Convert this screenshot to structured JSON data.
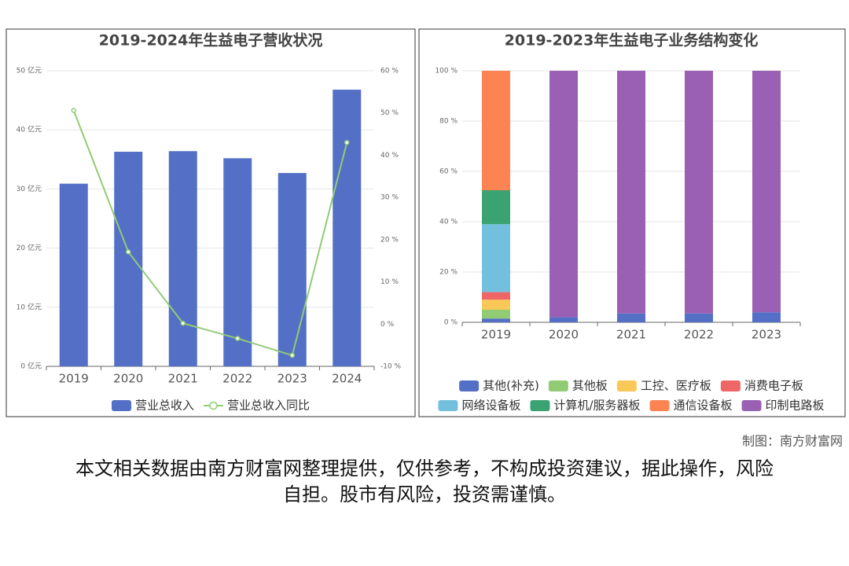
{
  "chart_data": [
    {
      "type": "bar_line",
      "title": "2019-2024年生益电子营收状况",
      "categories": [
        "2019",
        "2020",
        "2021",
        "2022",
        "2023",
        "2024"
      ],
      "series": [
        {
          "name": "营业总收入",
          "type": "bar",
          "color": "#5470c6",
          "values": [
            30.9,
            36.3,
            36.4,
            35.2,
            32.7,
            46.8
          ]
        },
        {
          "name": "营业总收入同比",
          "type": "line",
          "axis": "y2",
          "color": "#91cc75",
          "values": [
            50.6,
            17.1,
            0.2,
            -3.4,
            -7.4,
            43.0
          ]
        }
      ],
      "ylim": [
        0,
        50
      ],
      "yticks": [
        {
          "value": 0,
          "label": "0 亿元"
        },
        {
          "value": 10,
          "label": "10 亿元"
        },
        {
          "value": 20,
          "label": "20 亿元"
        },
        {
          "value": 30,
          "label": "30 亿元"
        },
        {
          "value": 40,
          "label": "40 亿元"
        },
        {
          "value": 50,
          "label": "50 亿元"
        }
      ],
      "y2lim": [
        -10,
        60
      ],
      "y2ticks": [
        {
          "value": -10,
          "label": "-10 %"
        },
        {
          "value": 0,
          "label": "0 %"
        },
        {
          "value": 10,
          "label": "10 %"
        },
        {
          "value": 20,
          "label": "20 %"
        },
        {
          "value": 30,
          "label": "30 %"
        },
        {
          "value": 40,
          "label": "40 %"
        },
        {
          "value": 50,
          "label": "50 %"
        },
        {
          "value": 60,
          "label": "60 %"
        }
      ],
      "grid": true,
      "legend": "bottom"
    },
    {
      "type": "stacked_bar",
      "title": "2019-2023年生益电子业务结构变化",
      "categories": [
        "2019",
        "2020",
        "2021",
        "2022",
        "2023"
      ],
      "series": [
        {
          "name": "其他(补充)",
          "color": "#5470c6",
          "values": [
            1.5,
            2.0,
            3.5,
            3.5,
            4.0
          ]
        },
        {
          "name": "其他板",
          "color": "#91cc75",
          "values": [
            3.5,
            0,
            0,
            0,
            0
          ]
        },
        {
          "name": "工控、医疗板",
          "color": "#fac858",
          "values": [
            4.0,
            0,
            0,
            0,
            0
          ]
        },
        {
          "name": "消费电子板",
          "color": "#ee6666",
          "values": [
            3.0,
            0,
            0,
            0,
            0
          ]
        },
        {
          "name": "网络设备板",
          "color": "#73c0de",
          "values": [
            27.0,
            0,
            0,
            0,
            0
          ]
        },
        {
          "name": "计算机/服务器板",
          "color": "#3ba272",
          "values": [
            13.5,
            0,
            0,
            0,
            0
          ]
        },
        {
          "name": "通信设备板",
          "color": "#fc8452",
          "values": [
            47.5,
            0,
            0,
            0,
            0
          ]
        },
        {
          "name": "印制电路板",
          "color": "#9a60b4",
          "values": [
            0,
            98.0,
            96.5,
            96.5,
            96.0
          ]
        }
      ],
      "ylim": [
        0,
        100
      ],
      "yticks": [
        {
          "value": 0,
          "label": "0 %"
        },
        {
          "value": 20,
          "label": "20 %"
        },
        {
          "value": 40,
          "label": "40 %"
        },
        {
          "value": 60,
          "label": "60 %"
        },
        {
          "value": 80,
          "label": "80 %"
        },
        {
          "value": 100,
          "label": "100 %"
        }
      ],
      "grid": true,
      "legend": "bottom"
    }
  ],
  "credit": "制图：南方财富网",
  "disclaimer": "本文相关数据由南方财富网整理提供，仅供参考，不构成投资建议，据此操作，风险自担。股市有风险，投资需谨慎。"
}
